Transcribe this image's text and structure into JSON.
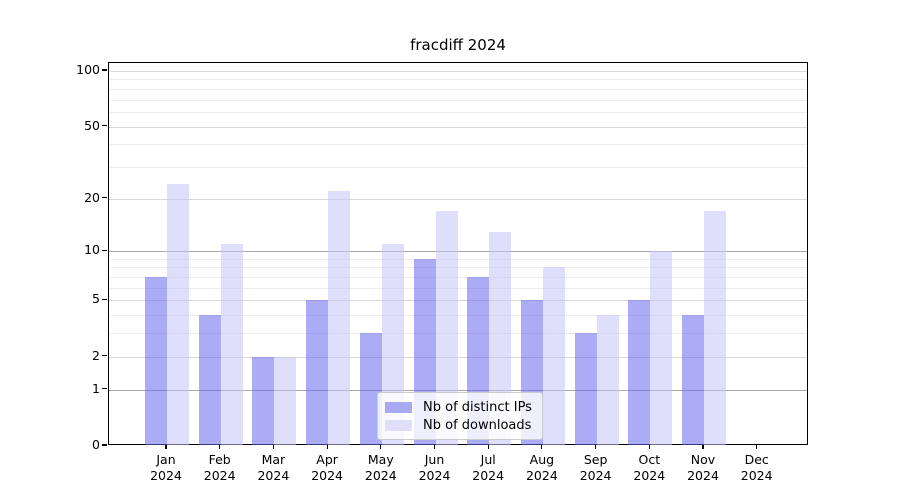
{
  "chart_data": {
    "type": "bar",
    "title": "fracdiff 2024",
    "categories": [
      {
        "month": "Jan",
        "year": "2024"
      },
      {
        "month": "Feb",
        "year": "2024"
      },
      {
        "month": "Mar",
        "year": "2024"
      },
      {
        "month": "Apr",
        "year": "2024"
      },
      {
        "month": "May",
        "year": "2024"
      },
      {
        "month": "Jun",
        "year": "2024"
      },
      {
        "month": "Jul",
        "year": "2024"
      },
      {
        "month": "Aug",
        "year": "2024"
      },
      {
        "month": "Sep",
        "year": "2024"
      },
      {
        "month": "Oct",
        "year": "2024"
      },
      {
        "month": "Nov",
        "year": "2024"
      },
      {
        "month": "Dec",
        "year": "2024"
      }
    ],
    "series": [
      {
        "name": "Nb of distinct IPs",
        "values": [
          7,
          4,
          2,
          5,
          3,
          9,
          7,
          5,
          3,
          5,
          4,
          0
        ],
        "color": "rgba(102,102,238,0.55)",
        "legend_color": "#a9a9f4"
      },
      {
        "name": "Nb of downloads",
        "values": [
          24,
          11,
          2,
          22,
          11,
          17,
          13,
          8,
          4,
          10,
          17,
          0
        ],
        "color": "rgba(196,196,247,0.55)",
        "legend_color": "#dfdffa"
      }
    ],
    "yscale": "log1p",
    "ylim": [
      0,
      100
    ],
    "yticks": [
      0,
      1,
      2,
      5,
      10,
      20,
      50,
      100
    ],
    "major_gridlines": [
      1,
      10
    ],
    "mid_gridlines": [
      2,
      5,
      20,
      50,
      100
    ],
    "minor_gridlines": [
      3,
      4,
      6,
      7,
      8,
      9,
      30,
      40,
      60,
      70,
      80,
      90
    ],
    "grid": true,
    "legend_position": "lower center",
    "colors": {
      "grid_major": "#a8a8a8",
      "grid_mid": "#d8d8d8",
      "grid_minor": "#ececec",
      "axis": "#000000",
      "background": "#ffffff"
    }
  }
}
